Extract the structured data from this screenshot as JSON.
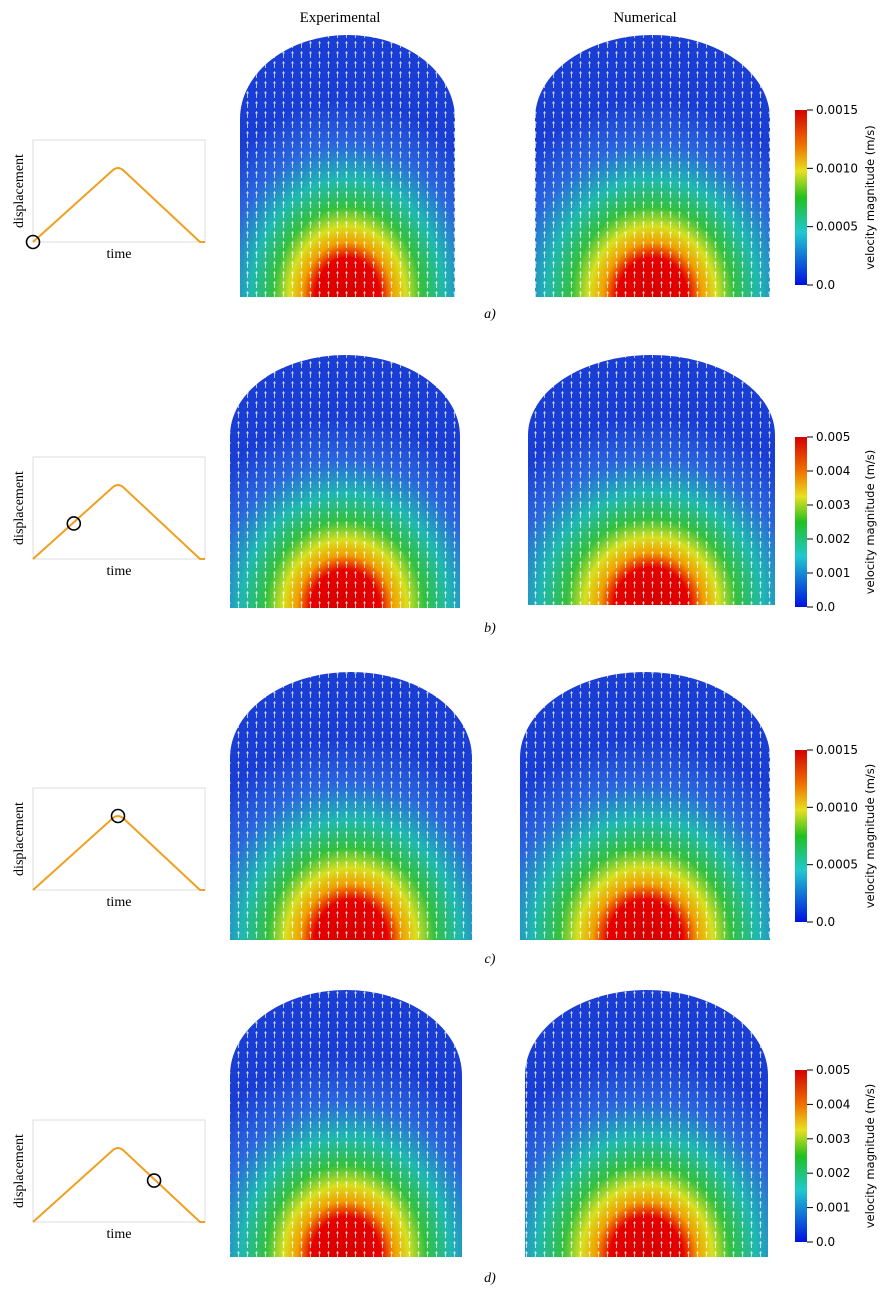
{
  "header": {
    "columns": [
      "Experimental",
      "Numerical"
    ]
  },
  "panels": [
    {
      "label": "a)",
      "inset": {
        "y_label": "displacement",
        "x_label": "time"
      },
      "colorbar": {
        "title": "velocity magnitude (m/s)",
        "ticks": [
          "0.0015",
          "0.0010",
          "0.0005",
          "0.0"
        ]
      }
    },
    {
      "label": "b)",
      "inset": {
        "y_label": "displacement",
        "x_label": "time"
      },
      "colorbar": {
        "title": "velocity magnitude (m/s)",
        "ticks": [
          "0.005",
          "0.004",
          "0.003",
          "0.002",
          "0.001",
          "0.0"
        ]
      }
    },
    {
      "label": "c)",
      "inset": {
        "y_label": "displacement",
        "x_label": "time"
      },
      "colorbar": {
        "title": "velocity magnitude (m/s)",
        "ticks": [
          "0.0015",
          "0.0010",
          "0.0005",
          "0.0"
        ]
      }
    },
    {
      "label": "d)",
      "inset": {
        "y_label": "displacement",
        "x_label": "time"
      },
      "colorbar": {
        "title": "velocity magnitude (m/s)",
        "ticks": [
          "0.005",
          "0.004",
          "0.003",
          "0.002",
          "0.001",
          "0.0"
        ]
      }
    }
  ]
}
